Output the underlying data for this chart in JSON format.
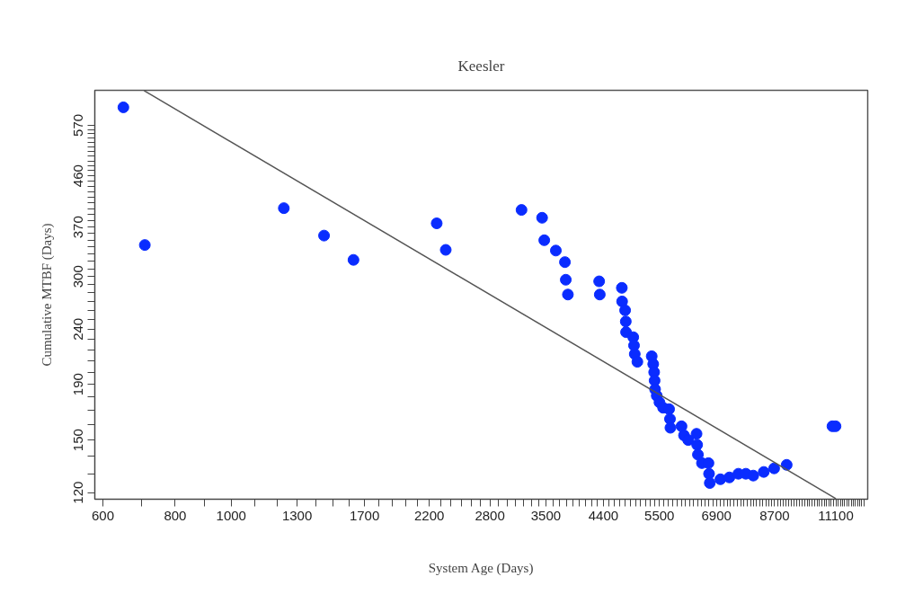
{
  "chart_data": {
    "type": "scatter",
    "title": "Keesler",
    "xlabel": "System Age (Days)",
    "ylabel": "Cumulative MTBF (Days)",
    "log": "xy",
    "xlim": [
      581,
      12600
    ],
    "ylim": [
      116.7,
      661
    ],
    "xticks": [
      600,
      {
        "value": 700,
        "label": null
      },
      800,
      {
        "value": 900,
        "label": null
      },
      1000,
      {
        "value": 1100,
        "label": null
      },
      {
        "value": 1200,
        "label": null
      },
      1300,
      {
        "value": 1400,
        "label": null
      },
      {
        "value": 1500,
        "label": null
      },
      {
        "value": 1600,
        "label": null
      },
      1700,
      {
        "value": 1800,
        "label": null
      },
      {
        "value": 1900,
        "label": null
      },
      {
        "value": 2000,
        "label": null
      },
      {
        "value": 2100,
        "label": null
      },
      2200,
      {
        "value": 2300,
        "label": null
      },
      {
        "value": 2400,
        "label": null
      },
      {
        "value": 2500,
        "label": null
      },
      {
        "value": 2600,
        "label": null
      },
      {
        "value": 2700,
        "label": null
      },
      2800,
      {
        "value": 2900,
        "label": null
      },
      {
        "value": 3000,
        "label": null
      },
      {
        "value": 3100,
        "label": null
      },
      {
        "value": 3200,
        "label": null
      },
      {
        "value": 3300,
        "label": null
      },
      {
        "value": 3400,
        "label": null
      },
      3500,
      {
        "value": 3600,
        "label": null
      },
      {
        "value": 3700,
        "label": null
      },
      {
        "value": 3800,
        "label": null
      },
      {
        "value": 3900,
        "label": null
      },
      {
        "value": 4000,
        "label": null
      },
      {
        "value": 4100,
        "label": null
      },
      {
        "value": 4200,
        "label": null
      },
      {
        "value": 4300,
        "label": null
      },
      4400,
      {
        "value": 4500,
        "label": null
      },
      {
        "value": 4600,
        "label": null
      },
      {
        "value": 4700,
        "label": null
      },
      {
        "value": 4800,
        "label": null
      },
      {
        "value": 4900,
        "label": null
      },
      {
        "value": 5000,
        "label": null
      },
      {
        "value": 5100,
        "label": null
      },
      {
        "value": 5200,
        "label": null
      },
      {
        "value": 5300,
        "label": null
      },
      {
        "value": 5400,
        "label": null
      },
      5500,
      {
        "value": 5600,
        "label": null
      },
      {
        "value": 5700,
        "label": null
      },
      {
        "value": 5800,
        "label": null
      },
      {
        "value": 5900,
        "label": null
      },
      {
        "value": 6000,
        "label": null
      },
      {
        "value": 6100,
        "label": null
      },
      {
        "value": 6200,
        "label": null
      },
      {
        "value": 6300,
        "label": null
      },
      {
        "value": 6400,
        "label": null
      },
      {
        "value": 6500,
        "label": null
      },
      {
        "value": 6600,
        "label": null
      },
      {
        "value": 6700,
        "label": null
      },
      {
        "value": 6800,
        "label": null
      },
      6900,
      {
        "value": 7000,
        "label": null
      },
      {
        "value": 7100,
        "label": null
      },
      {
        "value": 7200,
        "label": null
      },
      {
        "value": 7300,
        "label": null
      },
      {
        "value": 7400,
        "label": null
      },
      {
        "value": 7500,
        "label": null
      },
      {
        "value": 7600,
        "label": null
      },
      {
        "value": 7700,
        "label": null
      },
      {
        "value": 7800,
        "label": null
      },
      {
        "value": 7900,
        "label": null
      },
      {
        "value": 8000,
        "label": null
      },
      {
        "value": 8100,
        "label": null
      },
      {
        "value": 8200,
        "label": null
      },
      {
        "value": 8300,
        "label": null
      },
      {
        "value": 8400,
        "label": null
      },
      {
        "value": 8500,
        "label": null
      },
      {
        "value": 8600,
        "label": null
      },
      8700,
      {
        "value": 8800,
        "label": null
      },
      {
        "value": 8900,
        "label": null
      },
      {
        "value": 9000,
        "label": null
      },
      {
        "value": 9100,
        "label": null
      },
      {
        "value": 9200,
        "label": null
      },
      {
        "value": 9300,
        "label": null
      },
      {
        "value": 9400,
        "label": null
      },
      {
        "value": 9500,
        "label": null
      },
      {
        "value": 9600,
        "label": null
      },
      {
        "value": 9700,
        "label": null
      },
      {
        "value": 9800,
        "label": null
      },
      {
        "value": 9900,
        "label": null
      },
      {
        "value": 10000,
        "label": null
      },
      {
        "value": 10100,
        "label": null
      },
      {
        "value": 10200,
        "label": null
      },
      {
        "value": 10300,
        "label": null
      },
      {
        "value": 10400,
        "label": null
      },
      {
        "value": 10500,
        "label": null
      },
      {
        "value": 10600,
        "label": null
      },
      {
        "value": 10700,
        "label": null
      },
      {
        "value": 10800,
        "label": null
      },
      {
        "value": 10900,
        "label": null
      },
      {
        "value": 11000,
        "label": null
      },
      11100,
      {
        "value": 11200,
        "label": null
      },
      {
        "value": 11300,
        "label": null
      },
      {
        "value": 11400,
        "label": null
      },
      {
        "value": 11500,
        "label": null
      },
      {
        "value": 11600,
        "label": null
      },
      {
        "value": 11700,
        "label": null
      },
      {
        "value": 11800,
        "label": null
      },
      {
        "value": 11900,
        "label": null
      },
      {
        "value": 12000,
        "label": null
      },
      {
        "value": 12100,
        "label": null
      },
      {
        "value": 12200,
        "label": null
      },
      {
        "value": 12300,
        "label": null
      },
      {
        "value": 12400,
        "label": null
      }
    ],
    "yticks": [
      120,
      {
        "value": 130,
        "label": null
      },
      {
        "value": 140,
        "label": null
      },
      150,
      {
        "value": 160,
        "label": null
      },
      {
        "value": 170,
        "label": null
      },
      {
        "value": 180,
        "label": null
      },
      190,
      {
        "value": 200,
        "label": null
      },
      {
        "value": 210,
        "label": null
      },
      {
        "value": 220,
        "label": null
      },
      {
        "value": 230,
        "label": null
      },
      240,
      {
        "value": 250,
        "label": null
      },
      {
        "value": 260,
        "label": null
      },
      {
        "value": 270,
        "label": null
      },
      {
        "value": 280,
        "label": null
      },
      {
        "value": 290,
        "label": null
      },
      300,
      {
        "value": 310,
        "label": null
      },
      {
        "value": 320,
        "label": null
      },
      {
        "value": 330,
        "label": null
      },
      {
        "value": 340,
        "label": null
      },
      {
        "value": 350,
        "label": null
      },
      {
        "value": 360,
        "label": null
      },
      370,
      {
        "value": 380,
        "label": null
      },
      {
        "value": 390,
        "label": null
      },
      {
        "value": 400,
        "label": null
      },
      {
        "value": 410,
        "label": null
      },
      {
        "value": 420,
        "label": null
      },
      {
        "value": 430,
        "label": null
      },
      {
        "value": 440,
        "label": null
      },
      {
        "value": 450,
        "label": null
      },
      460,
      {
        "value": 470,
        "label": null
      },
      {
        "value": 480,
        "label": null
      },
      {
        "value": 490,
        "label": null
      },
      {
        "value": 500,
        "label": null
      },
      {
        "value": 510,
        "label": null
      },
      {
        "value": 520,
        "label": null
      },
      {
        "value": 530,
        "label": null
      },
      {
        "value": 540,
        "label": null
      },
      {
        "value": 550,
        "label": null
      },
      {
        "value": 560,
        "label": null
      },
      570
    ],
    "series": [
      {
        "marker": "circle",
        "color": "#0a2cff",
        "x": [
          651,
          709,
          1233,
          1447,
          1627,
          2266,
          2349,
          3176,
          3447,
          3477,
          3641,
          3775,
          3788,
          3820,
          4326,
          4337,
          4735,
          4740,
          4797,
          4810,
          4815,
          4955,
          4970,
          4985,
          5037,
          5333,
          5365,
          5385,
          5395,
          5405,
          5441,
          5500,
          5580,
          5715,
          5735,
          5745,
          6005,
          6064,
          6166,
          6375,
          6390,
          6410,
          6513,
          6685,
          6700,
          6720,
          7010,
          7265,
          7530,
          7757,
          7990,
          8330,
          8682,
          9127,
          10950,
          11085
        ],
        "values": [
          615,
          343,
          401,
          357,
          322,
          376,
          336,
          398,
          385,
          350,
          335,
          319,
          296,
          278,
          294,
          278,
          286,
          270,
          260,
          248,
          237,
          232,
          224,
          216,
          209,
          214,
          207,
          200,
          193,
          186,
          181,
          176,
          172,
          171,
          164,
          158,
          159,
          153,
          150,
          154,
          147,
          141,
          136,
          136,
          130,
          125,
          127,
          128,
          130,
          130,
          129,
          131,
          133,
          135,
          159,
          159
        ]
      },
      {
        "type": "line",
        "line_style": "solid",
        "color": "#555555",
        "x": [
          707,
          11100
        ],
        "values": [
          660,
          117
        ]
      }
    ]
  }
}
